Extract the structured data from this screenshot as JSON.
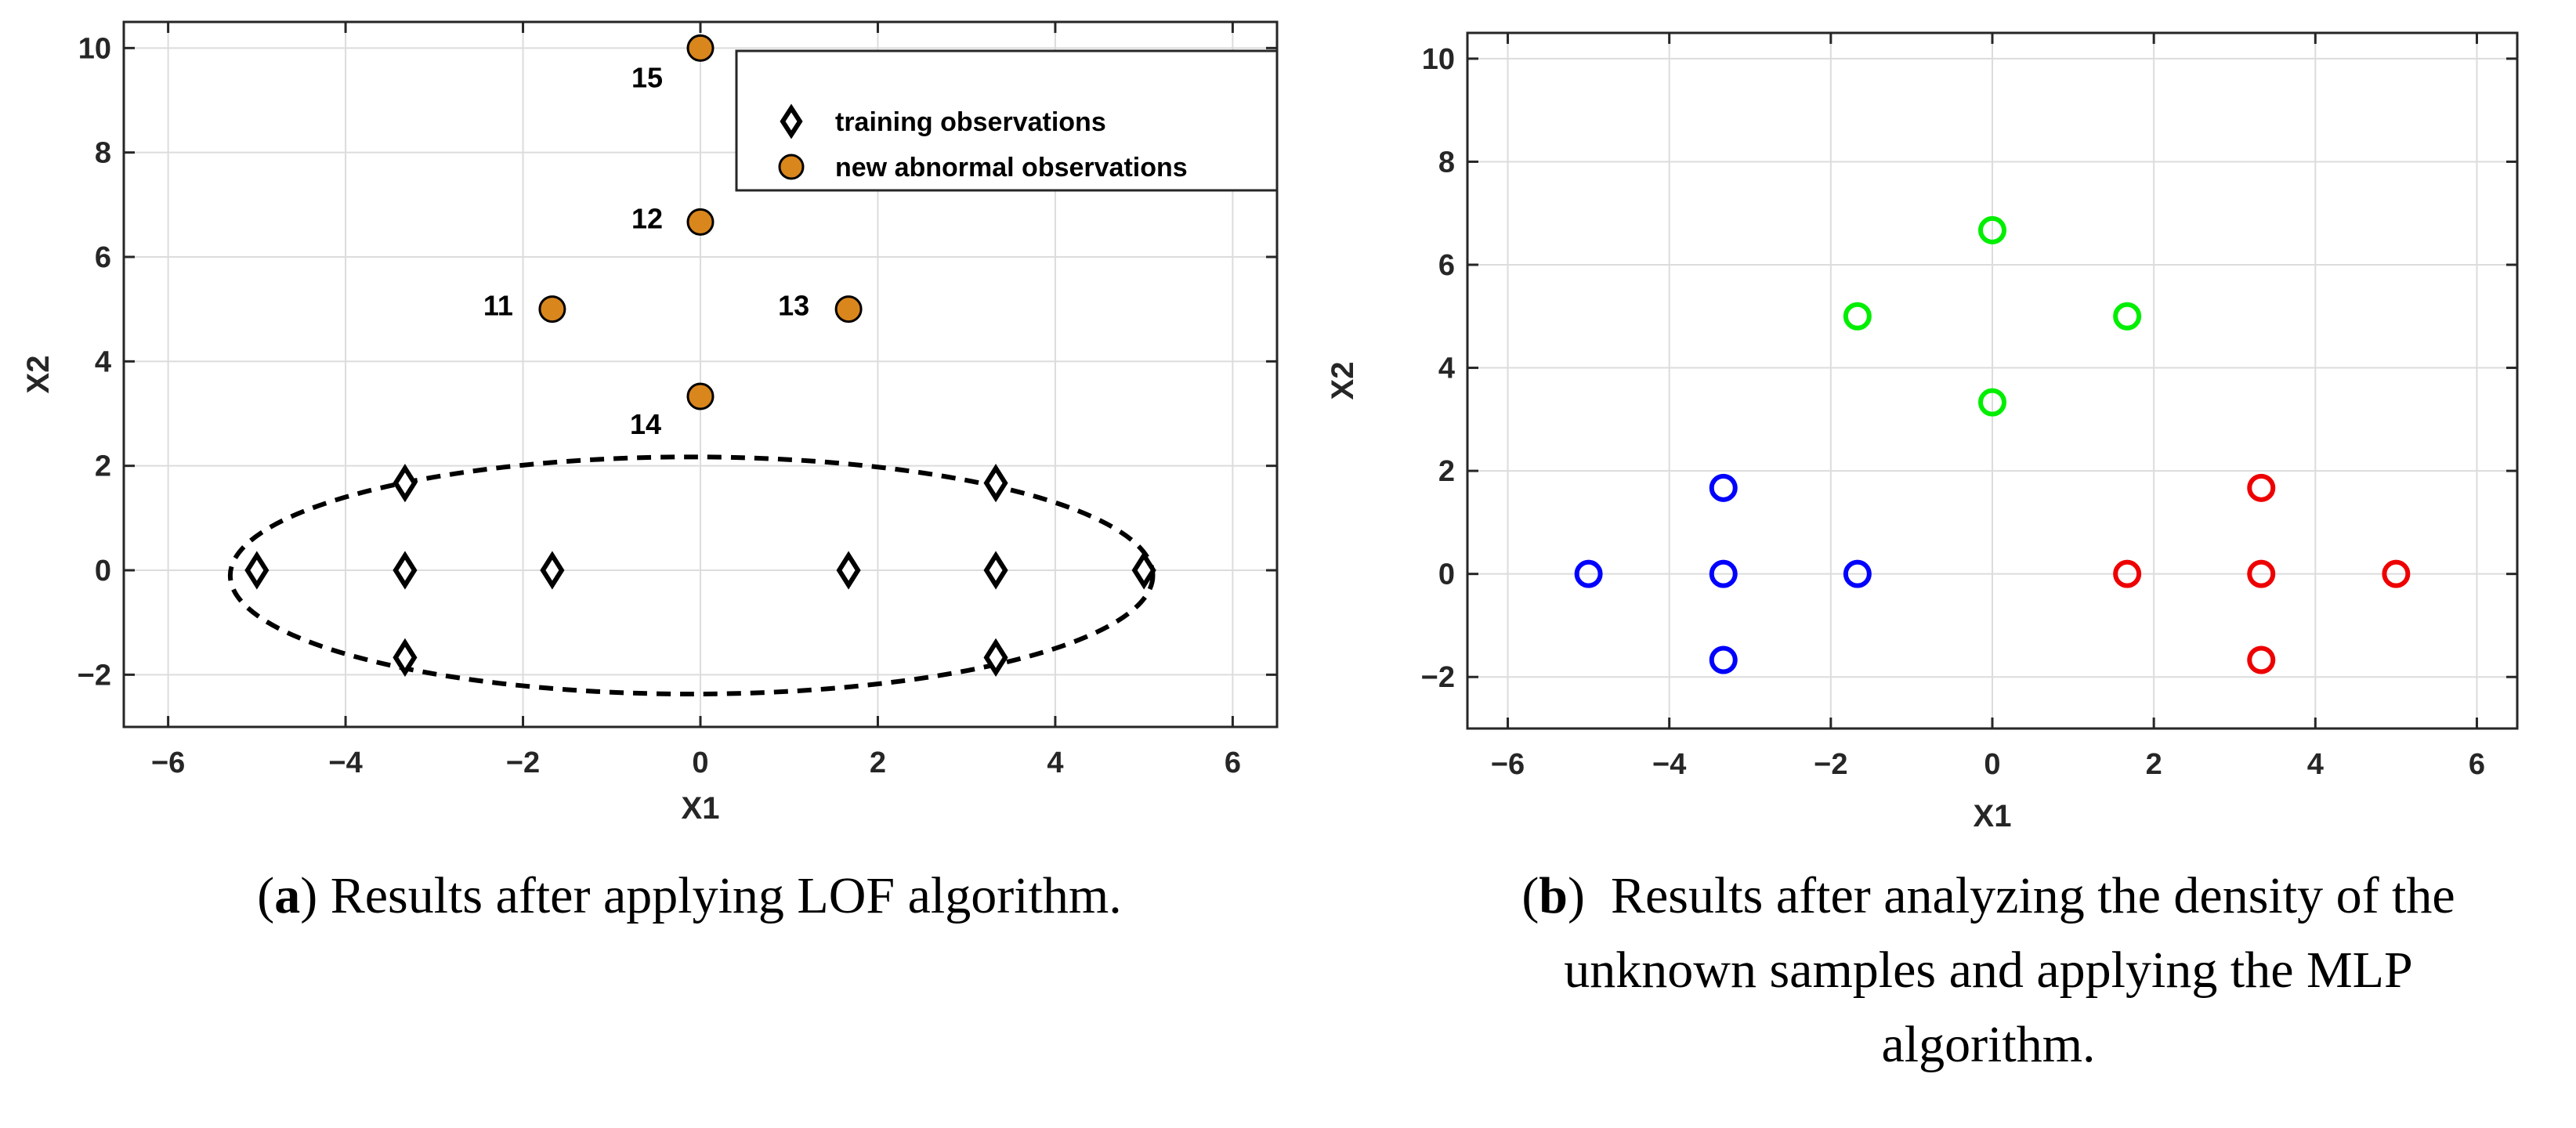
{
  "chart_data": [
    {
      "type": "scatter",
      "xlabel": "X1",
      "ylabel": "X2",
      "xlim": [
        -6.5,
        6.5
      ],
      "ylim": [
        -3,
        10.5
      ],
      "xticks": [
        -6,
        -4,
        -2,
        0,
        2,
        4,
        6
      ],
      "yticks": [
        -2,
        0,
        2,
        4,
        6,
        8,
        10
      ],
      "xtick_labels": [
        "−6",
        "−4",
        "−2",
        "0",
        "2",
        "4",
        "6"
      ],
      "ytick_labels": [
        "−2",
        "0",
        "2",
        "4",
        "6",
        "8",
        "10"
      ],
      "grid": true,
      "legend_position": "top-right",
      "series": [
        {
          "name": "training observations",
          "marker": "diamond",
          "color": "#000000",
          "x": [
            -5,
            -3.33,
            -3.33,
            -3.33,
            -1.67,
            1.67,
            3.33,
            3.33,
            3.33,
            5
          ],
          "y": [
            0,
            1.67,
            0,
            -1.67,
            0,
            0,
            1.67,
            0,
            -1.67,
            0
          ]
        },
        {
          "name": "new abnormal observations",
          "marker": "circle",
          "color": "#d9861c",
          "x": [
            0,
            0,
            -1.67,
            1.67,
            0
          ],
          "y": [
            10,
            6.67,
            5,
            5,
            3.33
          ],
          "labels": [
            "15",
            "12",
            "11",
            "13",
            "14"
          ]
        }
      ],
      "boundary": {
        "shape": "dashed-ellipse",
        "center": [
          -0.1,
          -0.1
        ],
        "semi_axis_x": 5.2,
        "semi_axis_y": 2.27
      },
      "caption_tag": "a",
      "caption_lines": [
        "Results after applying LOF algorithm."
      ]
    },
    {
      "type": "scatter",
      "xlabel": "X1",
      "ylabel": "X2",
      "xlim": [
        -6.5,
        6.5
      ],
      "ylim": [
        -3,
        10.5
      ],
      "xticks": [
        -6,
        -4,
        -2,
        0,
        2,
        4,
        6
      ],
      "yticks": [
        -2,
        0,
        2,
        4,
        6,
        8,
        10
      ],
      "xtick_labels": [
        "−6",
        "−4",
        "−2",
        "0",
        "2",
        "4",
        "6"
      ],
      "ytick_labels": [
        "−2",
        "0",
        "2",
        "4",
        "6",
        "8",
        "10"
      ],
      "grid": true,
      "series": [
        {
          "name": "cluster-blue",
          "marker": "open-circle",
          "color": "#0000ff",
          "x": [
            -5,
            -3.33,
            -3.33,
            -3.33,
            -1.67
          ],
          "y": [
            0,
            1.67,
            0,
            -1.67,
            0
          ]
        },
        {
          "name": "cluster-green",
          "marker": "open-circle",
          "color": "#00ee00",
          "x": [
            0,
            -1.67,
            1.67,
            0
          ],
          "y": [
            6.67,
            5,
            5,
            3.33
          ]
        },
        {
          "name": "cluster-red",
          "marker": "open-circle",
          "color": "#ee0000",
          "x": [
            1.67,
            3.33,
            3.33,
            3.33,
            5
          ],
          "y": [
            0,
            1.67,
            0,
            -1.67,
            0
          ]
        }
      ],
      "caption_tag": "b",
      "caption_lines": [
        "Results after analyzing the density of the",
        "unknown samples and applying the MLP",
        "algorithm."
      ]
    }
  ]
}
